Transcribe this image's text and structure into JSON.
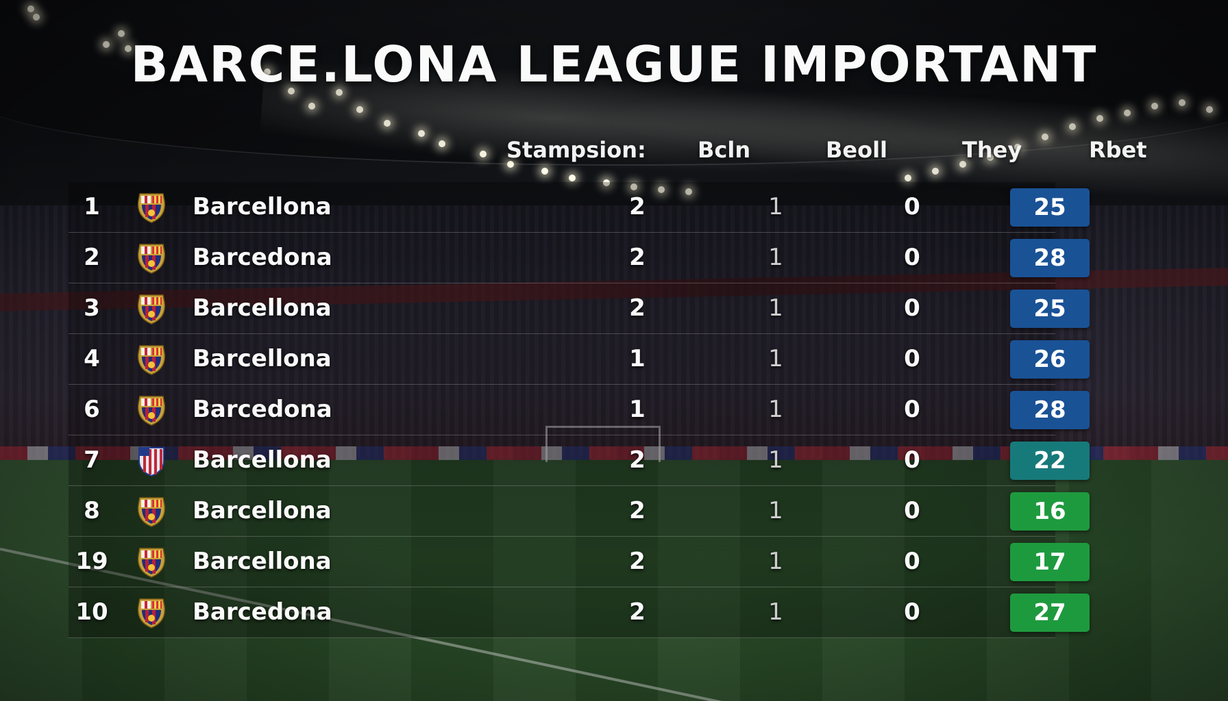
{
  "title": "BARCE.LONA LEAGUE IMPORTANT",
  "columns": {
    "team": "Stampsion:",
    "col1": "Bcln",
    "col2": "Beoll",
    "col3": "They",
    "col4": "Rbet"
  },
  "colors": {
    "badge_blue": "#1a5296",
    "badge_teal": "#177a7a",
    "badge_green": "#1e9a3e"
  },
  "rows": [
    {
      "rank": "1",
      "team": "Barcellona",
      "col1": "2",
      "col2": "1",
      "col3": "0",
      "points": "25",
      "badge": "#1a5296",
      "crest": "barcelona-crest-icon"
    },
    {
      "rank": "2",
      "team": "Barcedona",
      "col1": "2",
      "col2": "1",
      "col3": "0",
      "points": "28",
      "badge": "#1a5296",
      "crest": "barcelona-crest-icon"
    },
    {
      "rank": "3",
      "team": "Barcellona",
      "col1": "2",
      "col2": "1",
      "col3": "0",
      "points": "25",
      "badge": "#1a5296",
      "crest": "barcelona-crest-icon"
    },
    {
      "rank": "4",
      "team": "Barcellona",
      "col1": "1",
      "col2": "1",
      "col3": "0",
      "points": "26",
      "badge": "#1a5296",
      "crest": "barcelona-crest-icon"
    },
    {
      "rank": "6",
      "team": "Barcedona",
      "col1": "1",
      "col2": "1",
      "col3": "0",
      "points": "28",
      "badge": "#1a5296",
      "crest": "barcelona-crest-icon"
    },
    {
      "rank": "7",
      "team": "Barcellona",
      "col1": "2",
      "col2": "1",
      "col3": "0",
      "points": "22",
      "badge": "#177a7a",
      "crest": "striped-shield-icon"
    },
    {
      "rank": "8",
      "team": "Barcellona",
      "col1": "2",
      "col2": "1",
      "col3": "0",
      "points": "16",
      "badge": "#1e9a3e",
      "crest": "barcelona-crest-icon"
    },
    {
      "rank": "19",
      "team": "Barcellona",
      "col1": "2",
      "col2": "1",
      "col3": "0",
      "points": "17",
      "badge": "#1e9a3e",
      "crest": "barcelona-crest-icon"
    },
    {
      "rank": "10",
      "team": "Barcedona",
      "col1": "2",
      "col2": "1",
      "col3": "0",
      "points": "27",
      "badge": "#1e9a3e",
      "crest": "barcelona-crest-icon"
    }
  ]
}
